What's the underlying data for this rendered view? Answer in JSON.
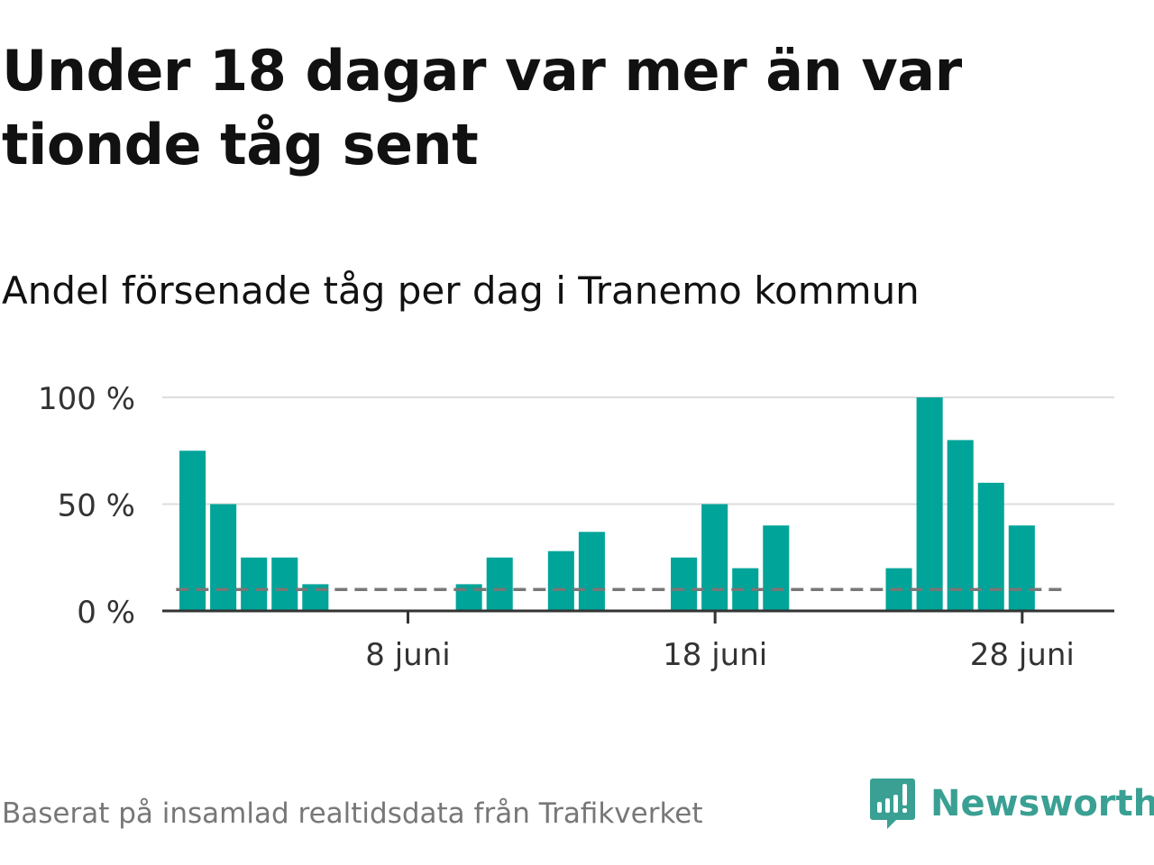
{
  "title": "Under 18 dagar var mer än var tionde tåg sent",
  "subtitle": "Andel försenade tåg per dag i Tranemo kommun",
  "source": "Baserat på insamlad realtidsdata från Trafikverket",
  "logo": "Newsworthy",
  "chart_data": {
    "type": "bar",
    "title": "Andel försenade tåg per dag i Tranemo kommun",
    "xlabel": "",
    "ylabel": "",
    "x": [
      1,
      2,
      3,
      4,
      5,
      6,
      7,
      8,
      9,
      10,
      11,
      12,
      13,
      14,
      15,
      16,
      17,
      18,
      19,
      20,
      21,
      22,
      23,
      24,
      25,
      26,
      27,
      28
    ],
    "values": [
      75,
      50,
      25,
      25,
      12.5,
      0,
      0,
      0,
      0,
      12.5,
      25,
      0,
      28,
      37,
      0,
      0,
      25,
      50,
      20,
      40,
      0,
      0,
      0,
      20,
      100,
      80,
      60,
      40
    ],
    "xlim": [
      0,
      31
    ],
    "ylim": [
      0,
      100
    ],
    "yticks": [
      {
        "v": 0,
        "label": "0 %"
      },
      {
        "v": 50,
        "label": "50 %"
      },
      {
        "v": 100,
        "label": "100 %"
      }
    ],
    "xticks": [
      {
        "v": 8,
        "label": "8 juni"
      },
      {
        "v": 18,
        "label": "18 juni"
      },
      {
        "v": 28,
        "label": "28 juni"
      }
    ],
    "reference_line": {
      "value": 10,
      "style": "dashed"
    },
    "bar_color": "#00a499",
    "grid": true
  }
}
